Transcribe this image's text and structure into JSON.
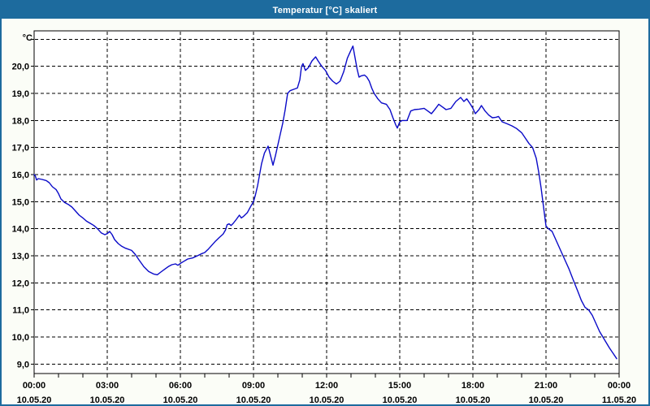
{
  "window": {
    "title": "Temperatur [°C] skaliert"
  },
  "colors": {
    "titlebar": "#1d6b9e",
    "window_border": "#1d6b9e",
    "background": "#fbfdf7",
    "plot_background": "#ffffff",
    "grid": "#000000",
    "axis": "#000000",
    "text": "#000000",
    "line": "#0a0ac8"
  },
  "chart_data": {
    "type": "line",
    "title": "Temperatur [°C] skaliert",
    "unit_label": "°C",
    "grid": "dashed, 1 degC horizontal steps, 3 h vertical steps",
    "legend_position": "none",
    "x_axis": {
      "range_hours": [
        0,
        24
      ],
      "major_tick_hours": [
        0,
        3,
        6,
        9,
        12,
        15,
        18,
        21,
        24
      ],
      "minor_tick_every_hours": 1,
      "tick_time_labels": [
        "00:00",
        "03:00",
        "06:00",
        "09:00",
        "12:00",
        "15:00",
        "18:00",
        "21:00",
        "00:00"
      ],
      "tick_date_labels": [
        "10.05.20",
        "10.05.20",
        "10.05.20",
        "10.05.20",
        "10.05.20",
        "10.05.20",
        "10.05.20",
        "10.05.20",
        "11.05.20"
      ]
    },
    "y_axis": {
      "range": [
        8.65,
        21.3
      ],
      "gridline_values": [
        9,
        10,
        11,
        12,
        13,
        14,
        15,
        16,
        17,
        18,
        19,
        20,
        21
      ],
      "labeled_values": [
        9,
        10,
        11,
        12,
        13,
        14,
        15,
        16,
        17,
        18,
        19,
        20
      ],
      "label_format": "comma-decimal-one-place"
    },
    "series": [
      {
        "name": "Temperatur",
        "color": "#0a0ac8",
        "points": [
          [
            0.0,
            16.0
          ],
          [
            0.05,
            15.95
          ],
          [
            0.1,
            15.8
          ],
          [
            0.17,
            15.85
          ],
          [
            0.33,
            15.82
          ],
          [
            0.5,
            15.78
          ],
          [
            0.62,
            15.7
          ],
          [
            0.75,
            15.55
          ],
          [
            0.9,
            15.45
          ],
          [
            1.0,
            15.3
          ],
          [
            1.1,
            15.1
          ],
          [
            1.25,
            14.97
          ],
          [
            1.4,
            14.9
          ],
          [
            1.55,
            14.8
          ],
          [
            1.7,
            14.65
          ],
          [
            1.85,
            14.5
          ],
          [
            2.0,
            14.4
          ],
          [
            2.15,
            14.28
          ],
          [
            2.3,
            14.2
          ],
          [
            2.45,
            14.12
          ],
          [
            2.6,
            14.0
          ],
          [
            2.75,
            13.85
          ],
          [
            2.9,
            13.78
          ],
          [
            3.0,
            13.82
          ],
          [
            3.1,
            13.9
          ],
          [
            3.2,
            13.78
          ],
          [
            3.3,
            13.6
          ],
          [
            3.45,
            13.45
          ],
          [
            3.6,
            13.35
          ],
          [
            3.75,
            13.28
          ],
          [
            4.0,
            13.2
          ],
          [
            4.15,
            13.05
          ],
          [
            4.3,
            12.85
          ],
          [
            4.5,
            12.6
          ],
          [
            4.7,
            12.42
          ],
          [
            4.9,
            12.33
          ],
          [
            5.05,
            12.3
          ],
          [
            5.2,
            12.4
          ],
          [
            5.35,
            12.5
          ],
          [
            5.5,
            12.6
          ],
          [
            5.65,
            12.67
          ],
          [
            5.8,
            12.7
          ],
          [
            5.9,
            12.65
          ],
          [
            6.0,
            12.72
          ],
          [
            6.15,
            12.8
          ],
          [
            6.3,
            12.88
          ],
          [
            6.5,
            12.92
          ],
          [
            6.7,
            13.0
          ],
          [
            6.85,
            13.07
          ],
          [
            7.0,
            13.12
          ],
          [
            7.15,
            13.25
          ],
          [
            7.3,
            13.4
          ],
          [
            7.45,
            13.55
          ],
          [
            7.6,
            13.68
          ],
          [
            7.75,
            13.8
          ],
          [
            7.85,
            13.95
          ],
          [
            7.92,
            14.15
          ],
          [
            8.0,
            14.18
          ],
          [
            8.08,
            14.12
          ],
          [
            8.17,
            14.2
          ],
          [
            8.3,
            14.35
          ],
          [
            8.42,
            14.5
          ],
          [
            8.5,
            14.4
          ],
          [
            8.58,
            14.45
          ],
          [
            8.75,
            14.6
          ],
          [
            8.9,
            14.85
          ],
          [
            9.0,
            15.0
          ],
          [
            9.08,
            15.25
          ],
          [
            9.17,
            15.6
          ],
          [
            9.25,
            16.0
          ],
          [
            9.33,
            16.4
          ],
          [
            9.45,
            16.8
          ],
          [
            9.6,
            17.05
          ],
          [
            9.7,
            16.7
          ],
          [
            9.8,
            16.35
          ],
          [
            9.9,
            16.7
          ],
          [
            10.0,
            17.1
          ],
          [
            10.1,
            17.5
          ],
          [
            10.2,
            17.9
          ],
          [
            10.3,
            18.4
          ],
          [
            10.4,
            19.0
          ],
          [
            10.5,
            19.1
          ],
          [
            10.65,
            19.15
          ],
          [
            10.8,
            19.2
          ],
          [
            10.9,
            19.5
          ],
          [
            10.97,
            20.0
          ],
          [
            11.03,
            20.1
          ],
          [
            11.13,
            19.85
          ],
          [
            11.25,
            19.95
          ],
          [
            11.4,
            20.2
          ],
          [
            11.55,
            20.35
          ],
          [
            11.65,
            20.2
          ],
          [
            11.8,
            20.0
          ],
          [
            11.95,
            19.85
          ],
          [
            12.1,
            19.6
          ],
          [
            12.25,
            19.45
          ],
          [
            12.4,
            19.35
          ],
          [
            12.55,
            19.45
          ],
          [
            12.7,
            19.8
          ],
          [
            12.85,
            20.3
          ],
          [
            13.0,
            20.6
          ],
          [
            13.08,
            20.75
          ],
          [
            13.17,
            20.3
          ],
          [
            13.25,
            19.9
          ],
          [
            13.33,
            19.6
          ],
          [
            13.42,
            19.65
          ],
          [
            13.55,
            19.68
          ],
          [
            13.65,
            19.6
          ],
          [
            13.75,
            19.45
          ],
          [
            13.85,
            19.2
          ],
          [
            13.95,
            19.0
          ],
          [
            14.1,
            18.8
          ],
          [
            14.25,
            18.65
          ],
          [
            14.45,
            18.6
          ],
          [
            14.6,
            18.4
          ],
          [
            14.72,
            18.1
          ],
          [
            14.83,
            17.85
          ],
          [
            14.9,
            17.72
          ],
          [
            15.0,
            17.95
          ],
          [
            15.1,
            18.0
          ],
          [
            15.3,
            18.0
          ],
          [
            15.45,
            18.35
          ],
          [
            15.6,
            18.4
          ],
          [
            15.8,
            18.42
          ],
          [
            16.0,
            18.45
          ],
          [
            16.15,
            18.35
          ],
          [
            16.3,
            18.25
          ],
          [
            16.45,
            18.42
          ],
          [
            16.6,
            18.6
          ],
          [
            16.75,
            18.5
          ],
          [
            16.9,
            18.4
          ],
          [
            17.1,
            18.45
          ],
          [
            17.3,
            18.7
          ],
          [
            17.5,
            18.85
          ],
          [
            17.63,
            18.7
          ],
          [
            17.75,
            18.8
          ],
          [
            17.9,
            18.6
          ],
          [
            18.0,
            18.45
          ],
          [
            18.1,
            18.25
          ],
          [
            18.25,
            18.4
          ],
          [
            18.35,
            18.55
          ],
          [
            18.5,
            18.35
          ],
          [
            18.65,
            18.2
          ],
          [
            18.8,
            18.1
          ],
          [
            18.95,
            18.12
          ],
          [
            19.05,
            18.15
          ],
          [
            19.2,
            17.95
          ],
          [
            19.4,
            17.88
          ],
          [
            19.6,
            17.8
          ],
          [
            19.8,
            17.7
          ],
          [
            20.0,
            17.55
          ],
          [
            20.15,
            17.35
          ],
          [
            20.3,
            17.15
          ],
          [
            20.45,
            17.0
          ],
          [
            20.6,
            16.6
          ],
          [
            20.7,
            16.1
          ],
          [
            20.8,
            15.5
          ],
          [
            20.9,
            14.8
          ],
          [
            21.0,
            14.1
          ],
          [
            21.1,
            14.0
          ],
          [
            21.25,
            13.9
          ],
          [
            21.4,
            13.6
          ],
          [
            21.6,
            13.2
          ],
          [
            21.75,
            12.9
          ],
          [
            21.95,
            12.5
          ],
          [
            22.1,
            12.15
          ],
          [
            22.3,
            11.7
          ],
          [
            22.45,
            11.35
          ],
          [
            22.6,
            11.1
          ],
          [
            22.75,
            11.0
          ],
          [
            22.9,
            10.8
          ],
          [
            23.05,
            10.5
          ],
          [
            23.2,
            10.2
          ],
          [
            23.4,
            9.9
          ],
          [
            23.6,
            9.6
          ],
          [
            23.75,
            9.4
          ],
          [
            23.9,
            9.2
          ]
        ]
      }
    ]
  }
}
